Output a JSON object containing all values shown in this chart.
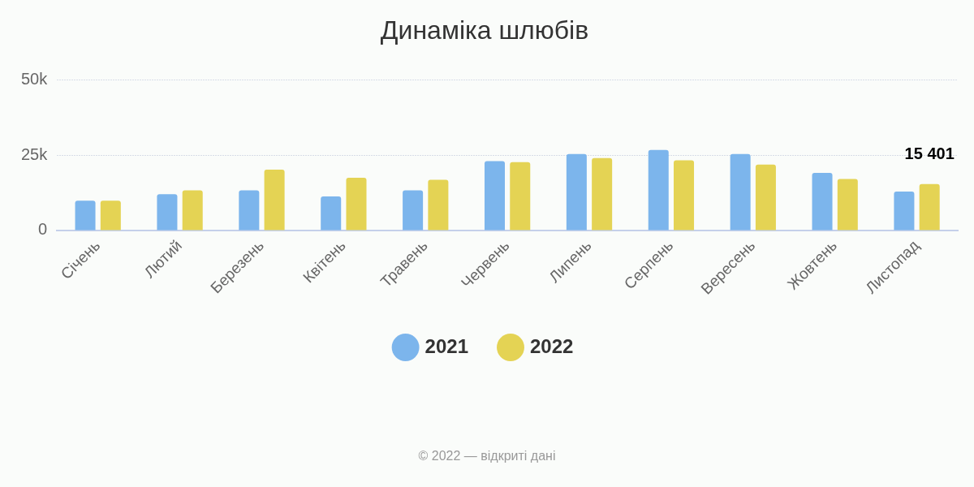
{
  "chart_data": {
    "type": "bar",
    "title": "Динаміка шлюбів",
    "categories": [
      "Січень",
      "Лютий",
      "Березень",
      "Квітень",
      "Травень",
      "Червень",
      "Липень",
      "Серпень",
      "Вересень",
      "Жовтень",
      "Листопад"
    ],
    "series": [
      {
        "name": "2021",
        "color": "#7cb5ec",
        "values": [
          9900,
          12000,
          13300,
          11300,
          13300,
          23000,
          25400,
          26700,
          25400,
          19100,
          12900
        ]
      },
      {
        "name": "2022",
        "color": "#e4d354",
        "values": [
          9900,
          13300,
          20200,
          17500,
          16800,
          22700,
          24000,
          23300,
          21900,
          17100,
          15401
        ],
        "value_labels": [
          null,
          null,
          null,
          null,
          null,
          null,
          null,
          null,
          null,
          null,
          "15 401"
        ]
      }
    ],
    "ylim": [
      0,
      50000
    ],
    "yticks": [
      0,
      {
        "value": 25000,
        "label": "25k"
      },
      {
        "value": 50000,
        "label": "50k"
      }
    ],
    "grid": "y",
    "legend": "bottom",
    "marker": "circle",
    "annotations": [
      "© 2022 — відкриті дані"
    ]
  }
}
